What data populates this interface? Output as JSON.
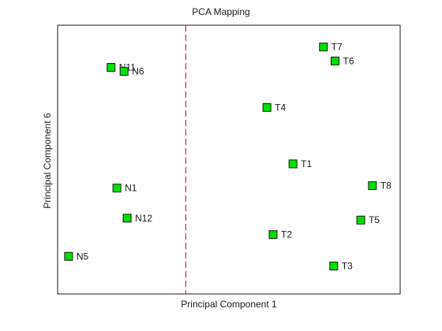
{
  "chart_data": {
    "type": "scatter",
    "title": "PCA Mapping",
    "xlabel": "Principal Component 1",
    "ylabel": "Principal Component 6",
    "xlim": [
      0,
      1
    ],
    "ylim": [
      0,
      1
    ],
    "grid": false,
    "ticks": false,
    "marker_color": "#00e000",
    "marker_edge": "#1a1a1a",
    "divider": {
      "x": 0.374,
      "color": "#cc0000",
      "style": "dashed"
    },
    "points": [
      {
        "label": "N11",
        "x": 0.156,
        "y": 0.843
      },
      {
        "label": "N6",
        "x": 0.194,
        "y": 0.828
      },
      {
        "label": "N1",
        "x": 0.173,
        "y": 0.394
      },
      {
        "label": "N12",
        "x": 0.203,
        "y": 0.282
      },
      {
        "label": "N5",
        "x": 0.032,
        "y": 0.14
      },
      {
        "label": "T7",
        "x": 0.776,
        "y": 0.919
      },
      {
        "label": "T6",
        "x": 0.81,
        "y": 0.867
      },
      {
        "label": "T4",
        "x": 0.611,
        "y": 0.694
      },
      {
        "label": "T1",
        "x": 0.687,
        "y": 0.484
      },
      {
        "label": "T8",
        "x": 0.919,
        "y": 0.403
      },
      {
        "label": "T5",
        "x": 0.885,
        "y": 0.275
      },
      {
        "label": "T2",
        "x": 0.629,
        "y": 0.221
      },
      {
        "label": "T3",
        "x": 0.806,
        "y": 0.104
      }
    ]
  }
}
